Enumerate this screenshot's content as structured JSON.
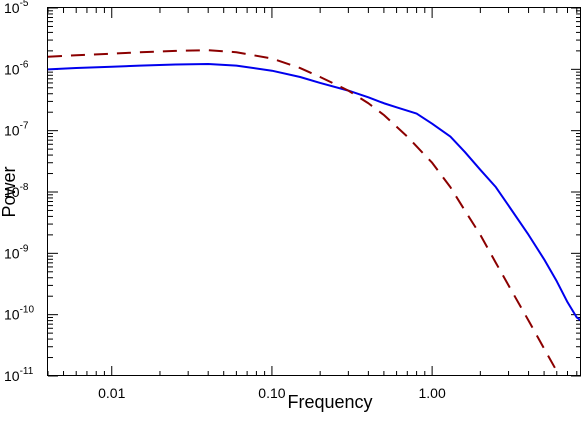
{
  "chart_data": {
    "type": "line",
    "xlabel": "Frequency",
    "ylabel": "Power",
    "x_scale": "log",
    "y_scale": "log",
    "xlim": [
      0.004,
      8.5
    ],
    "ylim": [
      1e-11,
      1e-05
    ],
    "x_tick_labels": [
      "0.01",
      "0.10",
      "1.00"
    ],
    "x_tick_values": [
      0.01,
      0.1,
      1.0
    ],
    "y_tick_values": [
      1e-11,
      1e-10,
      1e-09,
      1e-08,
      1e-07,
      1e-06,
      1e-05
    ],
    "y_tick_labels": [
      {
        "base": "10",
        "exp": "-11"
      },
      {
        "base": "10",
        "exp": "-10"
      },
      {
        "base": "10",
        "exp": "-9"
      },
      {
        "base": "10",
        "exp": "-8"
      },
      {
        "base": "10",
        "exp": "-7"
      },
      {
        "base": "10",
        "exp": "-6"
      },
      {
        "base": "10",
        "exp": "-5"
      }
    ],
    "grid": false,
    "series": [
      {
        "color": "#0000ee",
        "style": "solid",
        "points": [
          [
            0.004,
            1e-06
          ],
          [
            0.006,
            1.05e-06
          ],
          [
            0.01,
            1.1e-06
          ],
          [
            0.015,
            1.15e-06
          ],
          [
            0.025,
            1.2e-06
          ],
          [
            0.04,
            1.22e-06
          ],
          [
            0.06,
            1.15e-06
          ],
          [
            0.1,
            9.5e-07
          ],
          [
            0.15,
            7.5e-07
          ],
          [
            0.2,
            6e-07
          ],
          [
            0.3,
            4.5e-07
          ],
          [
            0.4,
            3.5e-07
          ],
          [
            0.5,
            2.8e-07
          ],
          [
            0.6,
            2.4e-07
          ],
          [
            0.8,
            1.9e-07
          ],
          [
            1.0,
            1.3e-07
          ],
          [
            1.3,
            8e-08
          ],
          [
            1.6,
            4.5e-08
          ],
          [
            2.0,
            2.3e-08
          ],
          [
            2.5,
            1.2e-08
          ],
          [
            3.0,
            6e-09
          ],
          [
            4.0,
            2e-09
          ],
          [
            5.0,
            8e-10
          ],
          [
            6.0,
            3.5e-10
          ],
          [
            7.0,
            1.6e-10
          ],
          [
            8.0,
            9e-11
          ],
          [
            8.5,
            8e-11
          ]
        ]
      },
      {
        "color": "#8b0000",
        "style": "dashed",
        "points": [
          [
            0.004,
            1.6e-06
          ],
          [
            0.006,
            1.7e-06
          ],
          [
            0.01,
            1.8e-06
          ],
          [
            0.015,
            1.9e-06
          ],
          [
            0.025,
            2e-06
          ],
          [
            0.04,
            2.05e-06
          ],
          [
            0.06,
            1.9e-06
          ],
          [
            0.1,
            1.5e-06
          ],
          [
            0.15,
            1.05e-06
          ],
          [
            0.2,
            7.5e-07
          ],
          [
            0.3,
            4.5e-07
          ],
          [
            0.4,
            2.8e-07
          ],
          [
            0.5,
            1.8e-07
          ],
          [
            0.7,
            8e-08
          ],
          [
            1.0,
            3e-08
          ],
          [
            1.3,
            1.2e-08
          ],
          [
            1.6,
            5e-09
          ],
          [
            2.0,
            2e-09
          ],
          [
            2.5,
            7e-10
          ],
          [
            3.0,
            3e-10
          ],
          [
            4.0,
            8e-11
          ],
          [
            5.0,
            2.8e-11
          ],
          [
            6.0,
            1.2e-11
          ],
          [
            6.2,
            1e-11
          ]
        ]
      }
    ]
  }
}
